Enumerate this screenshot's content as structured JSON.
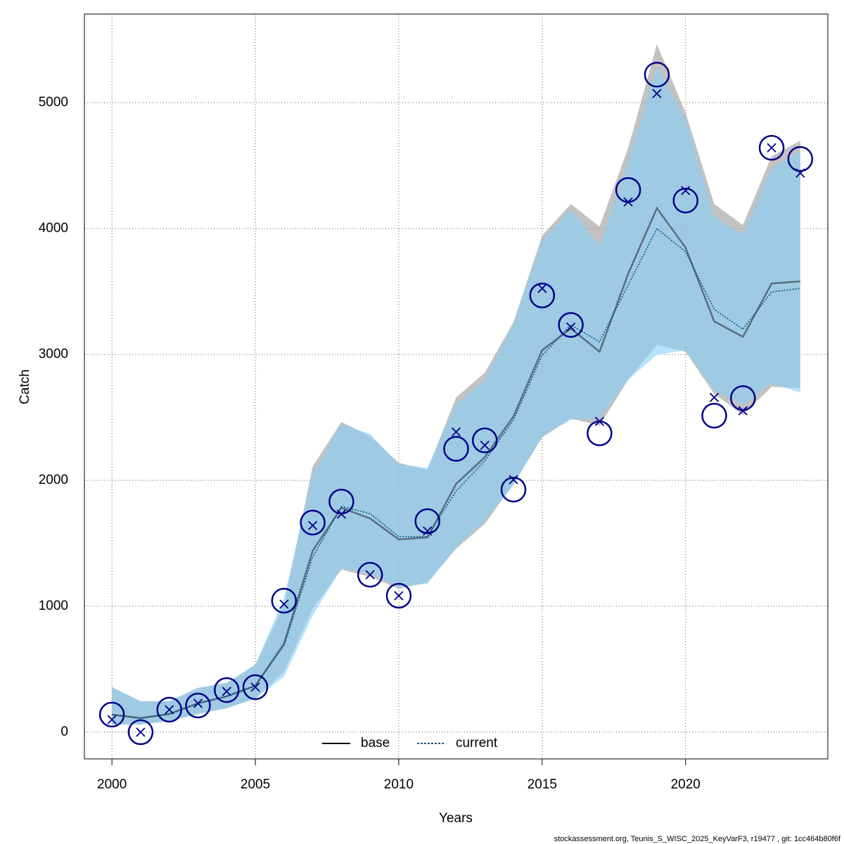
{
  "chart_data": {
    "type": "line",
    "x_label": "Years",
    "y_label": "Catch",
    "footer": "stockassessment.org, Teunis_S_WISC_2025_KeyVarF3, r19477 , git: 1cc464b80f6f",
    "x": [
      2000,
      2001,
      2002,
      2003,
      2004,
      2005,
      2006,
      2007,
      2008,
      2009,
      2010,
      2011,
      2012,
      2013,
      2014,
      2015,
      2016,
      2017,
      2018,
      2019,
      2020,
      2021,
      2022,
      2023,
      2024
    ],
    "xlim": [
      1999.04,
      2024.96
    ],
    "xticks": [
      2000,
      2005,
      2010,
      2015,
      2020
    ],
    "ylim": [
      -212,
      5704
    ],
    "yticks": [
      0,
      1000,
      2000,
      3000,
      4000,
      5000
    ],
    "grid": true,
    "legend": "bottom",
    "series": [
      {
        "name": "base",
        "color": "#000000",
        "band_color": "#9a9a9a",
        "dash": false,
        "values": [
          140,
          112,
          145,
          229,
          285,
          369,
          704,
          1441,
          1782,
          1698,
          1531,
          1547,
          1972,
          2184,
          2508,
          3034,
          3207,
          3022,
          3642,
          4162,
          3849,
          3263,
          3140,
          3564,
          3581
        ],
        "lower": [
          61,
          61,
          89,
          145,
          190,
          268,
          480,
          983,
          1291,
          1235,
          1140,
          1190,
          1458,
          1654,
          1972,
          2341,
          2492,
          2436,
          2799,
          3078,
          3022,
          2687,
          2520,
          2743,
          2732
        ],
        "upper": [
          358,
          246,
          246,
          352,
          391,
          536,
          1011,
          2112,
          2464,
          2352,
          2140,
          2084,
          2659,
          2855,
          3257,
          3944,
          4196,
          4017,
          4642,
          5464,
          4922,
          4196,
          4028,
          4575,
          4698
        ]
      },
      {
        "name": "current",
        "color": "#00527a",
        "band_color": "#87cefa",
        "dash": true,
        "values": [
          140,
          112,
          145,
          229,
          285,
          369,
          690,
          1391,
          1793,
          1737,
          1553,
          1553,
          1916,
          2156,
          2480,
          2994,
          3235,
          3101,
          3553,
          4000,
          3816,
          3358,
          3201,
          3497,
          3525
        ],
        "lower": [
          61,
          61,
          89,
          145,
          190,
          268,
          441,
          927,
          1302,
          1263,
          1151,
          1179,
          1469,
          1682,
          1961,
          2352,
          2480,
          2492,
          2799,
          2999,
          3033,
          2715,
          2603,
          2771,
          2698
        ],
        "upper": [
          358,
          246,
          246,
          352,
          391,
          536,
          1067,
          2045,
          2447,
          2369,
          2128,
          2101,
          2603,
          2799,
          3246,
          3905,
          4151,
          3860,
          4531,
          5285,
          4866,
          4095,
          3955,
          4480,
          4614
        ]
      }
    ],
    "observed": {
      "color": "#00008b",
      "values": [
        140,
        0,
        179,
        212,
        335,
        358,
        1045,
        1665,
        1832,
        1251,
        1084,
        1676,
        2251,
        2318,
        1927,
        3469,
        3235,
        2374,
        4307,
        5223,
        4223,
        2514,
        2654,
        4642,
        4553
      ]
    },
    "predicted": {
      "color": "#00008b",
      "values": [
        100,
        0,
        179,
        229,
        324,
        358,
        1017,
        1642,
        1732,
        1251,
        1084,
        1598,
        2385,
        2279,
        2006,
        3525,
        3218,
        2469,
        4212,
        5073,
        4302,
        2659,
        2553,
        4642,
        4441
      ]
    }
  }
}
